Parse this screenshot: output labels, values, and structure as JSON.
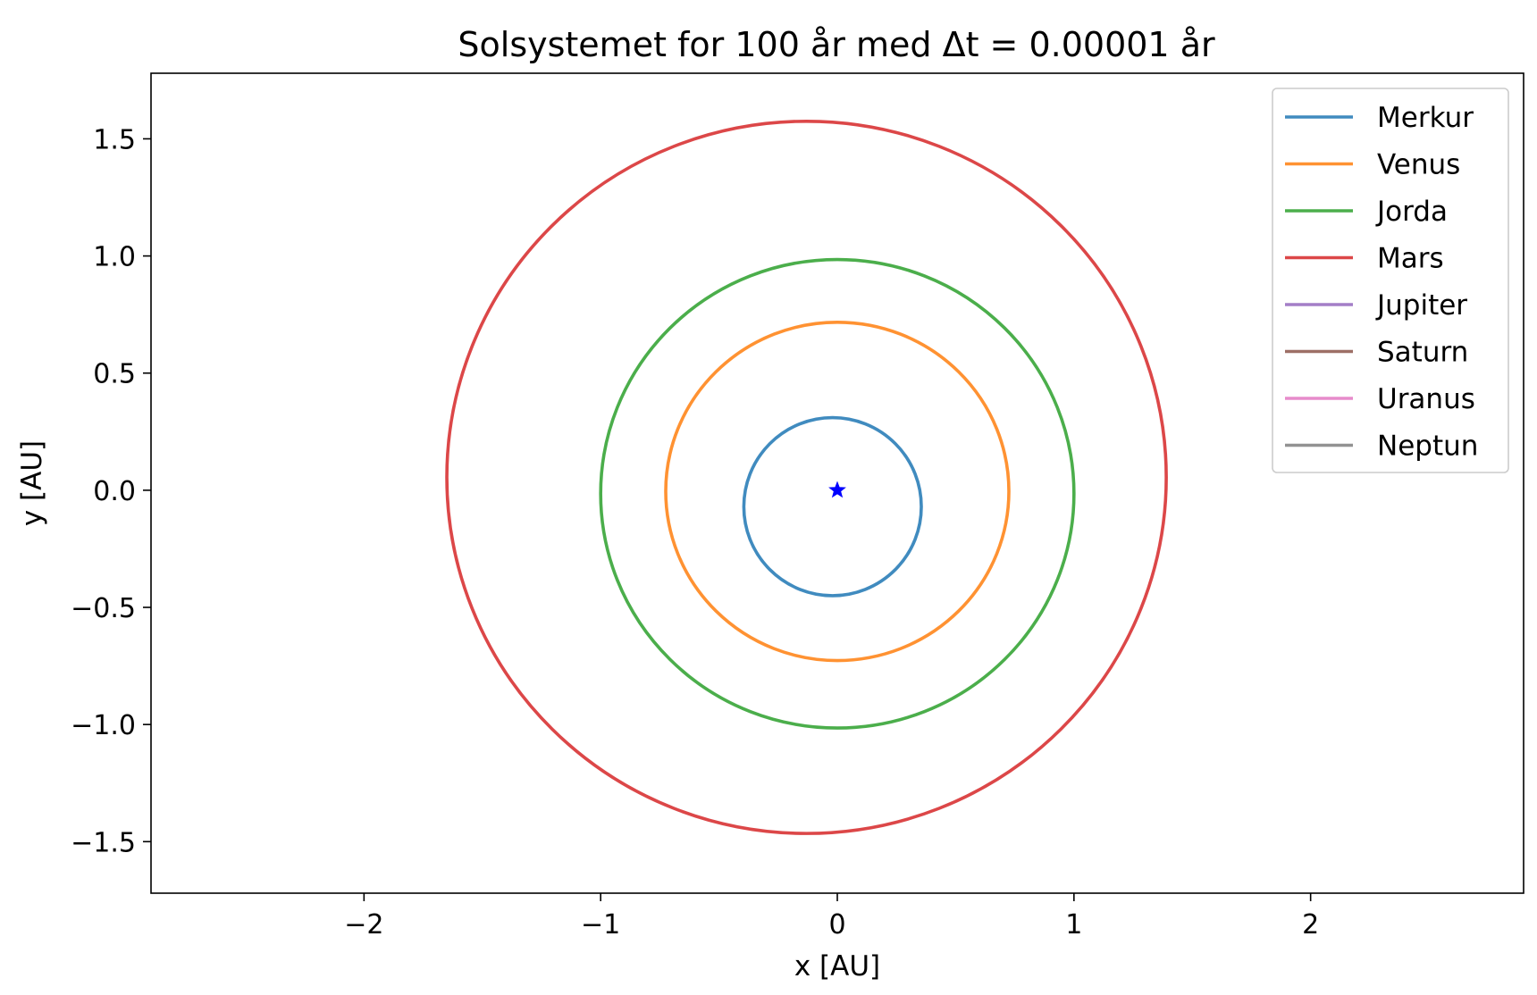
{
  "chart_data": {
    "type": "line",
    "title": "Solsystemet for 100 år med Δt = 0.00001 år",
    "xlabel": "x [AU]",
    "ylabel": "y [AU]",
    "xlim": [
      -2.9,
      2.9
    ],
    "ylim": [
      -1.72,
      1.78
    ],
    "xticks": [
      -2,
      -1,
      0,
      1,
      2
    ],
    "yticks": [
      -1.5,
      -1.0,
      -0.5,
      0.0,
      0.5,
      1.0,
      1.5
    ],
    "xtick_labels": [
      "−2",
      "−1",
      "0",
      "1",
      "2"
    ],
    "ytick_labels": [
      "−1.5",
      "−1.0",
      "−0.5",
      "0.0",
      "0.5",
      "1.0",
      "1.5"
    ],
    "grid": false,
    "legend_position": "top-right",
    "sun": {
      "x": 0.0,
      "y": 0.0,
      "marker": "star",
      "color": "#0000ff"
    },
    "series": [
      {
        "name": "Merkur",
        "color": "#1f77b4",
        "orbit": {
          "cx": -0.02,
          "cy": -0.07,
          "rx": 0.375,
          "ry": 0.38
        }
      },
      {
        "name": "Venus",
        "color": "#ff7f0e",
        "orbit": {
          "cx": 0.0,
          "cy": -0.005,
          "rx": 0.725,
          "ry": 0.722
        }
      },
      {
        "name": "Jorda",
        "color": "#2ca02c",
        "orbit": {
          "cx": 0.0,
          "cy": -0.015,
          "rx": 1.0,
          "ry": 1.0
        }
      },
      {
        "name": "Mars",
        "color": "#d62728",
        "orbit": {
          "cx": -0.13,
          "cy": 0.055,
          "rx": 1.52,
          "ry": 1.52
        }
      },
      {
        "name": "Jupiter",
        "color": "#9467bd",
        "orbit": null
      },
      {
        "name": "Saturn",
        "color": "#8c564b",
        "orbit": null
      },
      {
        "name": "Uranus",
        "color": "#e377c2",
        "orbit": null
      },
      {
        "name": "Neptun",
        "color": "#7f7f7f",
        "orbit": null
      }
    ]
  }
}
